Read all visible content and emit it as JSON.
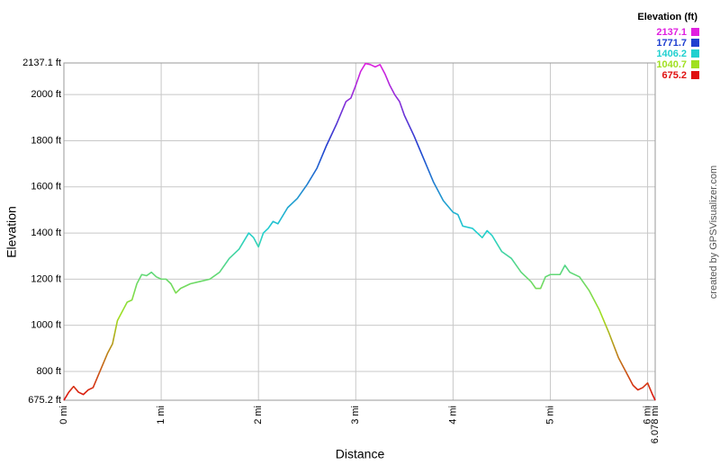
{
  "chart_data": {
    "type": "line",
    "x_label": "Distance",
    "y_label": "Elevation",
    "credit": "created by GPSVisualizer.com",
    "legend": {
      "title": "Elevation (ft)",
      "entries": [
        {
          "value": 2137.1,
          "color": "#e020e0"
        },
        {
          "value": 1771.7,
          "color": "#2040d0"
        },
        {
          "value": 1406.2,
          "color": "#20d0d0"
        },
        {
          "value": 1040.7,
          "color": "#a0e020"
        },
        {
          "value": 675.2,
          "color": "#e01010"
        }
      ]
    },
    "xlim": [
      0,
      6.078
    ],
    "ylim": [
      675.2,
      2137.1
    ],
    "xticks": [
      {
        "value": 0,
        "label": "0 mi"
      },
      {
        "value": 1,
        "label": "1 mi"
      },
      {
        "value": 2,
        "label": "2 mi"
      },
      {
        "value": 3,
        "label": "3 mi"
      },
      {
        "value": 4,
        "label": "4 mi"
      },
      {
        "value": 5,
        "label": "5 mi"
      },
      {
        "value": 6,
        "label": "6 mi"
      },
      {
        "value": 6.078,
        "label": "6.078 mi"
      }
    ],
    "yticks": [
      {
        "value": 675.2,
        "label": "675.2 ft"
      },
      {
        "value": 800,
        "label": "800 ft"
      },
      {
        "value": 1000,
        "label": "1000 ft"
      },
      {
        "value": 1200,
        "label": "1200 ft"
      },
      {
        "value": 1400,
        "label": "1400 ft"
      },
      {
        "value": 1600,
        "label": "1600 ft"
      },
      {
        "value": 1800,
        "label": "1800 ft"
      },
      {
        "value": 2000,
        "label": "2000 ft"
      },
      {
        "value": 2137.1,
        "label": "2137.1 ft"
      }
    ],
    "grid": true,
    "x": [
      0,
      0.05,
      0.1,
      0.15,
      0.2,
      0.25,
      0.3,
      0.35,
      0.4,
      0.45,
      0.5,
      0.55,
      0.6,
      0.65,
      0.7,
      0.75,
      0.8,
      0.85,
      0.9,
      0.95,
      1.0,
      1.05,
      1.1,
      1.15,
      1.2,
      1.3,
      1.4,
      1.5,
      1.6,
      1.7,
      1.8,
      1.9,
      1.95,
      2.0,
      2.05,
      2.1,
      2.15,
      2.2,
      2.3,
      2.4,
      2.5,
      2.6,
      2.7,
      2.8,
      2.9,
      2.95,
      3.0,
      3.05,
      3.1,
      3.15,
      3.2,
      3.25,
      3.3,
      3.35,
      3.4,
      3.45,
      3.5,
      3.6,
      3.7,
      3.8,
      3.9,
      4.0,
      4.05,
      4.1,
      4.2,
      4.3,
      4.35,
      4.4,
      4.5,
      4.6,
      4.7,
      4.8,
      4.85,
      4.9,
      4.95,
      5.0,
      5.1,
      5.15,
      5.2,
      5.3,
      5.4,
      5.5,
      5.6,
      5.7,
      5.8,
      5.85,
      5.9,
      5.95,
      6.0,
      6.05,
      6.078
    ],
    "values": [
      675,
      710,
      735,
      710,
      700,
      720,
      730,
      780,
      830,
      880,
      920,
      1020,
      1060,
      1100,
      1110,
      1180,
      1220,
      1215,
      1230,
      1210,
      1200,
      1200,
      1180,
      1140,
      1160,
      1180,
      1190,
      1200,
      1230,
      1290,
      1330,
      1400,
      1380,
      1340,
      1400,
      1420,
      1450,
      1440,
      1510,
      1550,
      1610,
      1680,
      1780,
      1870,
      1970,
      1985,
      2040,
      2100,
      2135,
      2130,
      2120,
      2130,
      2090,
      2040,
      2000,
      1970,
      1910,
      1820,
      1720,
      1620,
      1540,
      1490,
      1480,
      1430,
      1420,
      1380,
      1410,
      1390,
      1320,
      1290,
      1230,
      1190,
      1160,
      1160,
      1210,
      1220,
      1220,
      1260,
      1230,
      1210,
      1150,
      1070,
      970,
      860,
      780,
      740,
      720,
      730,
      750,
      700,
      675
    ]
  }
}
